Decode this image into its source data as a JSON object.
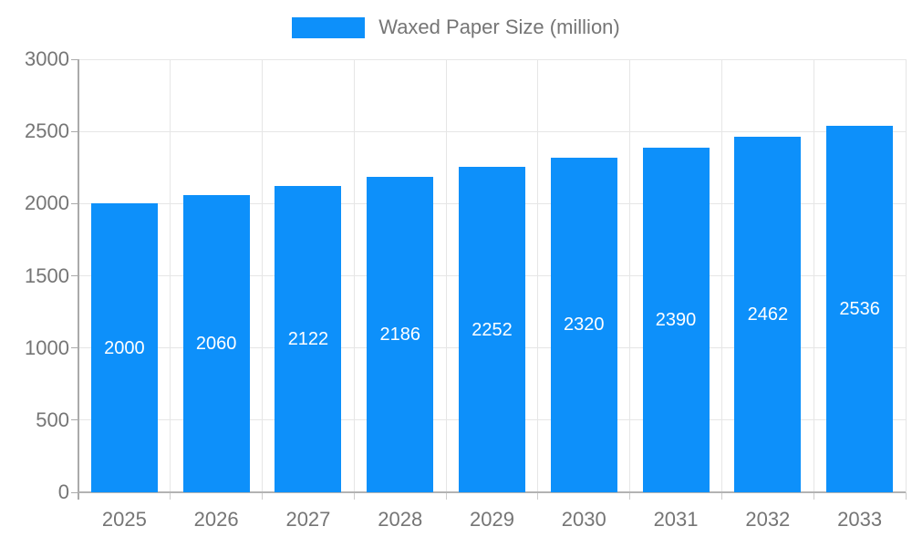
{
  "chart_data": {
    "type": "bar",
    "title": "Waxed Paper Size (million)",
    "categories": [
      "2025",
      "2026",
      "2027",
      "2028",
      "2029",
      "2030",
      "2031",
      "2032",
      "2033"
    ],
    "values": [
      2000,
      2060,
      2122,
      2186,
      2252,
      2320,
      2390,
      2462,
      2536
    ],
    "xlabel": "",
    "ylabel": "",
    "ylim": [
      0,
      3000
    ],
    "yticks": [
      0,
      500,
      1000,
      1500,
      2000,
      2500,
      3000
    ],
    "legend_position": "top-center",
    "grid": true,
    "value_labels": "inside-center",
    "colors": {
      "bar": "#0d90fa",
      "bar_value_text": "#ffffff",
      "axis_text": "#757575",
      "grid_line": "#e6e6e6",
      "axis_line": "#aaaaaa"
    }
  }
}
